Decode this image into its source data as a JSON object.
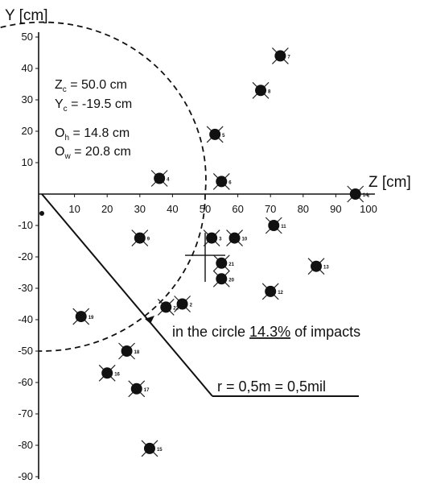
{
  "chart_data": {
    "type": "scatter",
    "xlabel": "Z [cm]",
    "ylabel": "Y [cm]",
    "xlim": [
      0,
      100
    ],
    "ylim": [
      -90,
      50
    ],
    "x_ticks": [
      10,
      20,
      30,
      40,
      50,
      60,
      70,
      80,
      90,
      100
    ],
    "y_ticks": [
      50,
      40,
      30,
      20,
      10,
      -10,
      -20,
      -30,
      -40,
      -50,
      -60,
      -70,
      -80,
      -90
    ],
    "stats": {
      "zc": {
        "sym": "Z",
        "sub": "c",
        "text": " = 50.0 cm"
      },
      "yc": {
        "sym": "Y",
        "sub": "c",
        "text": " = -19.5 cm"
      },
      "oh": {
        "sym": "O",
        "sub": "h",
        "text": " = 14.8 cm"
      },
      "ow": {
        "sym": "O",
        "sub": "w",
        "text": " = 20.8 cm"
      }
    },
    "circle": {
      "center": [
        0,
        0
      ],
      "radius": 50
    },
    "mean_point": {
      "x": 50.0,
      "y": -19.5
    },
    "annotations": {
      "circle_note_prefix": "in the circle ",
      "circle_note_value": "14.3%",
      "circle_note_suffix": " of impacts",
      "radius_note": "r = 0,5m = 0,5mil"
    },
    "points": [
      {
        "label": "2",
        "x": 43,
        "y": -35
      },
      {
        "label": "3",
        "x": 52,
        "y": -14
      },
      {
        "label": "4",
        "x": 36,
        "y": 5
      },
      {
        "label": "5",
        "x": 53,
        "y": 19
      },
      {
        "label": "6",
        "x": 55,
        "y": 4
      },
      {
        "label": "7",
        "x": 73,
        "y": 44
      },
      {
        "label": "8",
        "x": 67,
        "y": 33
      },
      {
        "label": "9",
        "x": 30,
        "y": -14
      },
      {
        "label": "10",
        "x": 59,
        "y": -14
      },
      {
        "label": "11",
        "x": 71,
        "y": -10
      },
      {
        "label": "12",
        "x": 70,
        "y": -31
      },
      {
        "label": "13",
        "x": 84,
        "y": -23
      },
      {
        "label": "14",
        "x": 96,
        "y": 0
      },
      {
        "label": "15",
        "x": 33,
        "y": -81
      },
      {
        "label": "16",
        "x": 20,
        "y": -57
      },
      {
        "label": "17",
        "x": 29,
        "y": -62
      },
      {
        "label": "18",
        "x": 26,
        "y": -50
      },
      {
        "label": "19",
        "x": 12,
        "y": -39
      },
      {
        "label": "20",
        "x": 55,
        "y": -27
      },
      {
        "label": "21",
        "x": 55,
        "y": -22
      },
      {
        "label": "22",
        "x": 38,
        "y": -36
      }
    ]
  }
}
